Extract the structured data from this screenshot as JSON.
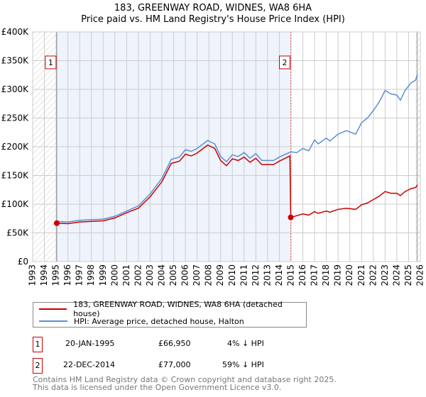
{
  "chart_data": {
    "type": "line",
    "title": "183, GREENWAY ROAD, WIDNES, WA8 6HA",
    "subtitle": "Price paid vs. HM Land Registry's House Price Index (HPI)",
    "xlim": [
      1993,
      2026
    ],
    "ylim": [
      0,
      400000
    ],
    "x_ticks": [
      "1993",
      "1994",
      "1995",
      "1996",
      "1997",
      "1998",
      "1999",
      "2000",
      "2001",
      "2002",
      "2003",
      "2004",
      "2005",
      "2006",
      "2007",
      "2008",
      "2009",
      "2010",
      "2011",
      "2012",
      "2013",
      "2014",
      "2015",
      "2016",
      "2017",
      "2018",
      "2019",
      "2020",
      "2021",
      "2022",
      "2023",
      "2024",
      "2025",
      "2026"
    ],
    "y_ticks": [
      {
        "v": 0,
        "label": "£0"
      },
      {
        "v": 50000,
        "label": "£50K"
      },
      {
        "v": 100000,
        "label": "£100K"
      },
      {
        "v": 150000,
        "label": "£150K"
      },
      {
        "v": 200000,
        "label": "£200K"
      },
      {
        "v": 250000,
        "label": "£250K"
      },
      {
        "v": 300000,
        "label": "£300K"
      },
      {
        "v": 350000,
        "label": "£350K"
      },
      {
        "v": 400000,
        "label": "£400K"
      }
    ],
    "grid": true,
    "series": [
      {
        "name": "183, GREENWAY ROAD, WIDNES, WA8 6HA (detached house)",
        "color": "#cc0000",
        "x": [
          1995.05,
          1996,
          1997,
          1998,
          1999,
          2000,
          2001,
          2002,
          2003,
          2004,
          2004.8,
          2005.5,
          2006,
          2006.5,
          2007,
          2007.9,
          2008.5,
          2009,
          2009.5,
          2010,
          2010.5,
          2011,
          2011.5,
          2012,
          2012.5,
          2013,
          2013.5,
          2014,
          2014.9,
          2014.97,
          2015.5,
          2016,
          2016.5,
          2017,
          2017.3,
          2018,
          2018.3,
          2019,
          2019.7,
          2020.5,
          2021,
          2021.5,
          2022,
          2022.5,
          2023,
          2023.5,
          2024,
          2024.3,
          2024.7,
          2025.2,
          2025.6,
          2025.75
        ],
        "y": [
          66950,
          66000,
          69000,
          70000,
          71000,
          76000,
          85000,
          93000,
          113000,
          139000,
          171000,
          175000,
          187000,
          184000,
          189000,
          203000,
          197000,
          176000,
          167000,
          179000,
          176000,
          182000,
          173000,
          180000,
          169000,
          169000,
          169000,
          175000,
          184000,
          77000,
          80000,
          83000,
          81000,
          87000,
          84000,
          88000,
          86000,
          91000,
          93000,
          91000,
          99000,
          102000,
          108000,
          114000,
          122000,
          119000,
          119000,
          115000,
          122000,
          127000,
          129000,
          134000
        ]
      },
      {
        "name": "HPI: Average price, detached house, Halton",
        "color": "#5b8fd4",
        "x": [
          1995.05,
          1996,
          1997,
          1998,
          1999,
          2000,
          2001,
          2002,
          2003,
          2004,
          2004.8,
          2005.5,
          2006,
          2006.5,
          2007,
          2007.9,
          2008.5,
          2009,
          2009.5,
          2010,
          2010.5,
          2011,
          2011.5,
          2012,
          2012.5,
          2013,
          2013.5,
          2014,
          2014.97,
          2015.5,
          2016,
          2016.5,
          2017,
          2017.3,
          2018,
          2018.3,
          2019,
          2019.7,
          2020.5,
          2021,
          2021.5,
          2022,
          2022.5,
          2023,
          2023.5,
          2024,
          2024.3,
          2024.7,
          2025.2,
          2025.6,
          2025.75
        ],
        "y": [
          70000,
          69000,
          72000,
          73000,
          74000,
          79000,
          88000,
          97000,
          118000,
          145000,
          178000,
          182000,
          195000,
          192000,
          197000,
          211000,
          205000,
          183000,
          174000,
          186000,
          183000,
          190000,
          180000,
          188000,
          176000,
          176000,
          176000,
          182000,
          191000,
          190000,
          197000,
          193000,
          212000,
          205000,
          215000,
          210000,
          222000,
          228000,
          222000,
          242000,
          250000,
          263000,
          278000,
          298000,
          292000,
          290000,
          281000,
          298000,
          311000,
          316000,
          327000
        ]
      }
    ],
    "sales": [
      {
        "label": "1",
        "x": 1995.05,
        "value": 66950,
        "date": "20-JAN-1995",
        "price": "£66,950",
        "hpi": "4% ↓ HPI"
      },
      {
        "label": "2",
        "x": 2014.97,
        "value": 77000,
        "date": "22-DEC-2014",
        "price": "£77,000",
        "hpi": "59% ↓ HPI"
      }
    ],
    "hatched_before": 1995.05,
    "hatched_after": 2025.6,
    "legend": "below"
  },
  "legend": {
    "property": "183, GREENWAY ROAD, WIDNES, WA8 6HA (detached house)",
    "hpi": "HPI: Average price, detached house, Halton"
  },
  "footer": {
    "line1": "Contains HM Land Registry data © Crown copyright and database right 2025.",
    "line2": "This data is licensed under the Open Government Licence v3.0."
  }
}
